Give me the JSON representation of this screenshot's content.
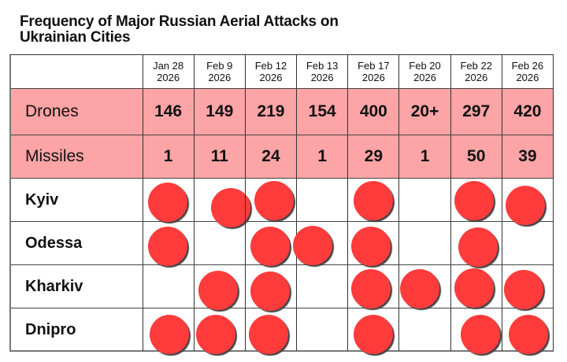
{
  "chart_data": {
    "type": "table",
    "title": "Frequency of Major Russian Aerial Attacks on Ukrainian Cities",
    "columns": [
      "Jan 28 2026",
      "Feb 9 2026",
      "Feb 12 2026",
      "Feb 13 2026",
      "Feb 17 2026",
      "Feb 20 2026",
      "Feb 22 2026",
      "Feb 26 2026"
    ],
    "metrics": [
      {
        "name": "Drones",
        "values": [
          "146",
          "149",
          "219",
          "154",
          "400",
          "20+",
          "297",
          "420"
        ]
      },
      {
        "name": "Missiles",
        "values": [
          "1",
          "11",
          "24",
          "1",
          "29",
          "1",
          "50",
          "39"
        ]
      }
    ],
    "cities": [
      {
        "name": "Kyiv",
        "attacked": [
          1,
          1,
          1,
          0,
          1,
          0,
          1,
          1
        ]
      },
      {
        "name": "Odessa",
        "attacked": [
          1,
          0,
          1,
          1,
          1,
          0,
          1,
          0
        ]
      },
      {
        "name": "Kharkiv",
        "attacked": [
          0,
          1,
          1,
          0,
          1,
          1,
          1,
          1
        ]
      },
      {
        "name": "Dnipro",
        "attacked": [
          1,
          1,
          1,
          0,
          1,
          0,
          1,
          1
        ]
      }
    ],
    "marker_color": "#ff3b3b",
    "highlight_row_color": "#fda4a6"
  },
  "title_line1": "Frequency of Major Russian Aerial Attacks on",
  "title_line2": "Ukrainian Cities",
  "header": [
    {
      "l1": "Jan 28",
      "l2": "2026"
    },
    {
      "l1": "Feb 9",
      "l2": "2026"
    },
    {
      "l1": "Feb 12",
      "l2": "2026"
    },
    {
      "l1": "Feb 13",
      "l2": "2026"
    },
    {
      "l1": "Feb 17",
      "l2": "2026"
    },
    {
      "l1": "Feb 20",
      "l2": "2026"
    },
    {
      "l1": "Feb 22",
      "l2": "2026"
    },
    {
      "l1": "Feb 26",
      "l2": "2026"
    }
  ],
  "dot_offsets": {
    "Kyiv": [
      [
        -1,
        3
      ],
      [
        14,
        10
      ],
      [
        4,
        1
      ],
      [
        0,
        0
      ],
      [
        0,
        1
      ],
      [
        0,
        0
      ],
      [
        -3,
        1
      ],
      [
        -3,
        7
      ]
    ],
    "Odessa": [
      [
        -1,
        4
      ],
      [
        0,
        0
      ],
      [
        -1,
        4
      ],
      [
        -12,
        3
      ],
      [
        -3,
        4
      ],
      [
        0,
        0
      ],
      [
        2,
        5
      ],
      [
        0,
        0
      ]
    ],
    "Kharkiv": [
      [
        0,
        0
      ],
      [
        -2,
        5
      ],
      [
        -1,
        6
      ],
      [
        0,
        0
      ],
      [
        -3,
        3
      ],
      [
        -6,
        3
      ],
      [
        -3,
        2
      ],
      [
        -5,
        4
      ]
    ],
    "Dnipro": [
      [
        1,
        6
      ],
      [
        -5,
        6
      ],
      [
        -3,
        6
      ],
      [
        0,
        0
      ],
      [
        0,
        6
      ],
      [
        0,
        0
      ],
      [
        5,
        6
      ],
      [
        1,
        6
      ]
    ]
  }
}
